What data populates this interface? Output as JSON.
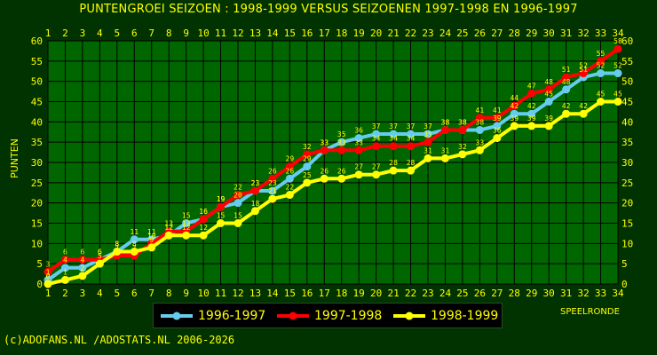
{
  "title": "PUNTENGROEI  SEIZOEN : 1998-1999 VERSUS SEIZOENEN 1997-1998 EN 1996-1997",
  "footer": "(c)ADOFANS.NL /ADOSTATS.NL 2006-2026",
  "chart_data": {
    "type": "line",
    "xlabel": "SPEELRONDE",
    "ylabel": "PUNTEN",
    "xlim": [
      1,
      34
    ],
    "ylim": [
      0,
      60
    ],
    "yticks": [
      0,
      5,
      10,
      15,
      20,
      25,
      30,
      35,
      40,
      45,
      50,
      55,
      60
    ],
    "grid": true,
    "legend_position": "bottom-center",
    "x": [
      1,
      2,
      3,
      4,
      5,
      6,
      7,
      8,
      9,
      10,
      11,
      12,
      13,
      14,
      15,
      16,
      17,
      18,
      19,
      20,
      21,
      22,
      23,
      24,
      25,
      26,
      27,
      28,
      29,
      30,
      31,
      32,
      33,
      34
    ],
    "series": [
      {
        "name": "1996-1997",
        "color": "#66ccee",
        "values": [
          1,
          4,
          4,
          6,
          8,
          11,
          11,
          12,
          15,
          16,
          19,
          20,
          23,
          23,
          26,
          29,
          33,
          35,
          36,
          37,
          37,
          37,
          37,
          38,
          38,
          38,
          39,
          42,
          42,
          45,
          48,
          51,
          52,
          52
        ]
      },
      {
        "name": "1997-1998",
        "color": "#ff0000",
        "values": [
          3,
          6,
          6,
          6,
          7,
          7,
          10,
          13,
          13,
          16,
          19,
          22,
          23,
          26,
          29,
          32,
          33,
          33,
          33,
          34,
          34,
          34,
          35,
          38,
          38,
          41,
          41,
          44,
          47,
          48,
          51,
          52,
          55,
          58
        ]
      },
      {
        "name": "1998-1999",
        "color": "#ffff00",
        "values": [
          0,
          1,
          2,
          5,
          8,
          8,
          9,
          12,
          12,
          12,
          15,
          15,
          18,
          21,
          22,
          25,
          26,
          26,
          27,
          27,
          28,
          28,
          31,
          31,
          32,
          33,
          36,
          39,
          39,
          39,
          42,
          42,
          45,
          45
        ]
      }
    ]
  }
}
